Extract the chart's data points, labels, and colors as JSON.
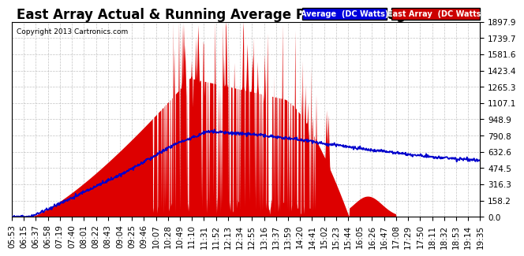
{
  "title": "East Array Actual & Running Average Power Tue Aug 13 19:54",
  "copyright": "Copyright 2013 Cartronics.com",
  "legend_labels": [
    "Average  (DC Watts)",
    "East Array  (DC Watts)"
  ],
  "legend_bg_colors": [
    "#0000dd",
    "#cc0000"
  ],
  "yticks": [
    0.0,
    158.2,
    316.3,
    474.5,
    632.6,
    790.8,
    948.9,
    1107.1,
    1265.3,
    1423.4,
    1581.6,
    1739.7,
    1897.9
  ],
  "ymax": 1897.9,
  "ymin": 0.0,
  "background_color": "#ffffff",
  "plot_bg_color": "#ffffff",
  "grid_color": "#aaaaaa",
  "fill_color": "#dd0000",
  "avg_line_color": "#0000cc",
  "title_fontsize": 12,
  "tick_fontsize": 7.5,
  "xtick_rotation": 90,
  "x_labels": [
    "05:53",
    "06:15",
    "06:37",
    "06:58",
    "07:19",
    "07:40",
    "08:01",
    "08:22",
    "08:43",
    "09:04",
    "09:25",
    "09:46",
    "10:07",
    "10:28",
    "10:49",
    "11:10",
    "11:31",
    "11:52",
    "12:13",
    "12:34",
    "12:55",
    "13:16",
    "13:37",
    "13:59",
    "14:20",
    "14:41",
    "15:02",
    "15:23",
    "15:44",
    "16:05",
    "16:26",
    "16:47",
    "17:08",
    "17:29",
    "17:50",
    "18:11",
    "18:32",
    "18:53",
    "19:14",
    "19:35"
  ]
}
